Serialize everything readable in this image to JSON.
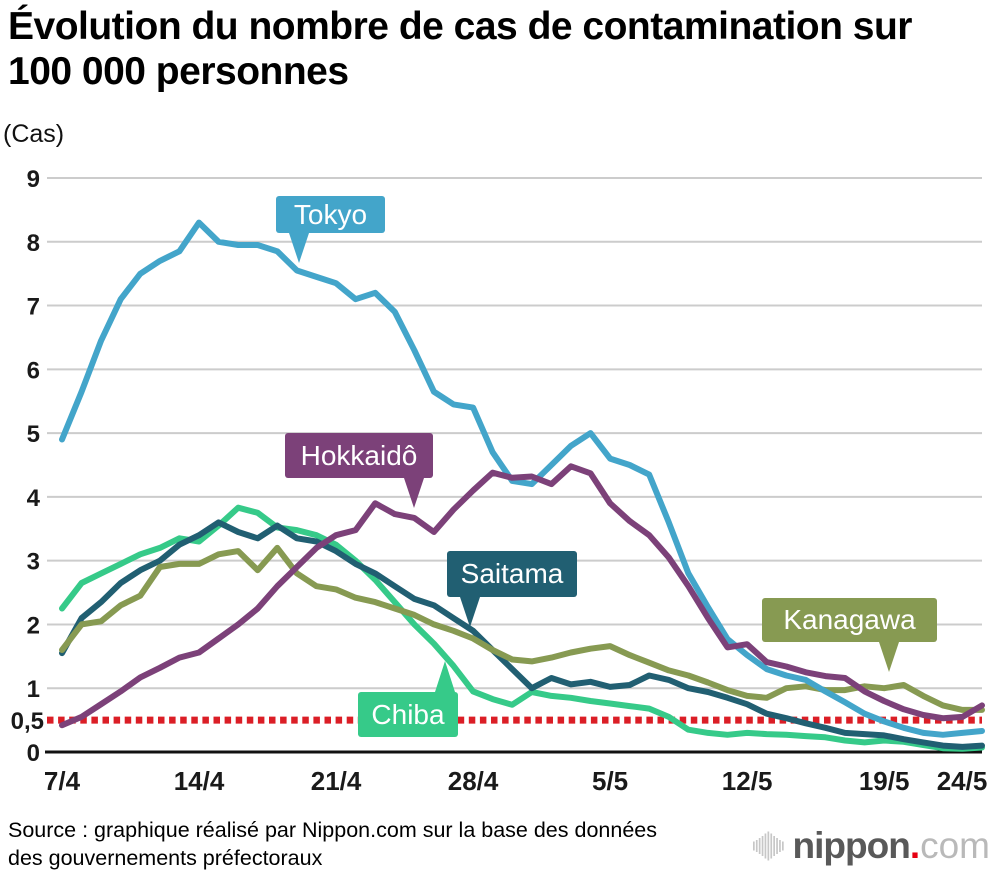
{
  "header": {
    "title_line1": "Évolution du nombre de cas de contamination sur",
    "title_line2": "100 000 personnes",
    "unit_label": "(Cas)"
  },
  "footer": {
    "source_line1": "Source : graphique réalisé par Nippon.com sur la base des données",
    "source_line2": "des gouvernements préfectoraux"
  },
  "logo": {
    "icon": "soundwave-icon",
    "text_bold": "nippon",
    "text_dot": ".",
    "text_light": "com",
    "colors": {
      "icon": "#c7c7c7",
      "text_bold": "#595959",
      "dot": "#e60012",
      "text_light": "#b9b9b9"
    }
  },
  "chart_data": {
    "type": "line",
    "title": "Évolution du nombre de cas de contamination sur 100 000 personnes",
    "ylabel": "(Cas)",
    "ylim": [
      0,
      9
    ],
    "y_ticks": [
      0,
      1,
      2,
      3,
      4,
      5,
      6,
      7,
      8,
      9
    ],
    "grid": true,
    "grid_color": "#cccccc",
    "axis_color": "#111111",
    "x_tick_labels": [
      "7/4",
      "14/4",
      "21/4",
      "28/4",
      "5/5",
      "12/5",
      "19/5",
      "24/5"
    ],
    "x_tick_days": [
      0,
      7,
      14,
      21,
      28,
      35,
      42,
      47
    ],
    "x_range_days": 47,
    "x_start_label": "7/4",
    "x_end_label": "24/5",
    "threshold": {
      "value": 0.5,
      "label": "0,5",
      "color": "#db1e26"
    },
    "draw_order": [
      4,
      2,
      3,
      0,
      1
    ],
    "series": [
      {
        "name": "Tokyo",
        "color": "#43a5ca",
        "values": [
          4.9,
          5.65,
          6.45,
          7.1,
          7.5,
          7.7,
          7.85,
          8.3,
          8.0,
          7.95,
          7.95,
          7.85,
          7.55,
          7.45,
          7.35,
          7.1,
          7.2,
          6.9,
          6.3,
          5.65,
          5.45,
          5.4,
          4.7,
          4.25,
          4.2,
          4.5,
          4.8,
          5.0,
          4.6,
          4.5,
          4.35,
          3.6,
          2.8,
          2.27,
          1.77,
          1.52,
          1.3,
          1.2,
          1.13,
          0.95,
          0.78,
          0.6,
          0.48,
          0.38,
          0.3,
          0.27,
          0.3,
          0.33
        ]
      },
      {
        "name": "Hokkaidô",
        "color": "#7c4179",
        "values": [
          0.42,
          0.55,
          0.75,
          0.95,
          1.17,
          1.32,
          1.48,
          1.56,
          1.78,
          2.0,
          2.25,
          2.6,
          2.9,
          3.2,
          3.4,
          3.48,
          3.9,
          3.73,
          3.67,
          3.45,
          3.8,
          4.1,
          4.38,
          4.3,
          4.32,
          4.2,
          4.48,
          4.37,
          3.9,
          3.62,
          3.4,
          3.05,
          2.6,
          2.1,
          1.64,
          1.69,
          1.41,
          1.34,
          1.25,
          1.19,
          1.16,
          0.95,
          0.8,
          0.67,
          0.58,
          0.53,
          0.55,
          0.73
        ]
      },
      {
        "name": "Saitama",
        "color": "#215f72",
        "values": [
          1.55,
          2.1,
          2.35,
          2.65,
          2.85,
          3.0,
          3.25,
          3.4,
          3.6,
          3.45,
          3.35,
          3.55,
          3.35,
          3.3,
          3.15,
          2.95,
          2.8,
          2.6,
          2.4,
          2.3,
          2.1,
          1.9,
          1.6,
          1.3,
          1.0,
          1.16,
          1.06,
          1.1,
          1.02,
          1.05,
          1.2,
          1.13,
          1.0,
          0.94,
          0.85,
          0.75,
          0.6,
          0.53,
          0.45,
          0.38,
          0.3,
          0.28,
          0.26,
          0.2,
          0.15,
          0.1,
          0.08,
          0.1
        ]
      },
      {
        "name": "Kanagawa",
        "color": "#879a52",
        "values": [
          1.6,
          2.0,
          2.05,
          2.3,
          2.45,
          2.9,
          2.95,
          2.95,
          3.1,
          3.15,
          2.85,
          3.2,
          2.8,
          2.6,
          2.55,
          2.42,
          2.35,
          2.25,
          2.15,
          2.0,
          1.9,
          1.78,
          1.6,
          1.45,
          1.42,
          1.48,
          1.56,
          1.62,
          1.66,
          1.52,
          1.4,
          1.28,
          1.2,
          1.09,
          0.97,
          0.88,
          0.85,
          1.0,
          1.03,
          0.97,
          0.97,
          1.03,
          1.0,
          1.05,
          0.88,
          0.73,
          0.66,
          0.66
        ]
      },
      {
        "name": "Chiba",
        "color": "#36ca89",
        "values": [
          2.25,
          2.65,
          2.8,
          2.95,
          3.1,
          3.2,
          3.35,
          3.3,
          3.55,
          3.83,
          3.75,
          3.52,
          3.48,
          3.4,
          3.25,
          3.0,
          2.7,
          2.35,
          2.0,
          1.7,
          1.35,
          0.95,
          0.83,
          0.74,
          0.94,
          0.88,
          0.85,
          0.8,
          0.76,
          0.72,
          0.68,
          0.55,
          0.35,
          0.3,
          0.27,
          0.3,
          0.28,
          0.27,
          0.25,
          0.23,
          0.18,
          0.15,
          0.18,
          0.16,
          0.11,
          0.06,
          0.05,
          0.07
        ]
      }
    ]
  }
}
